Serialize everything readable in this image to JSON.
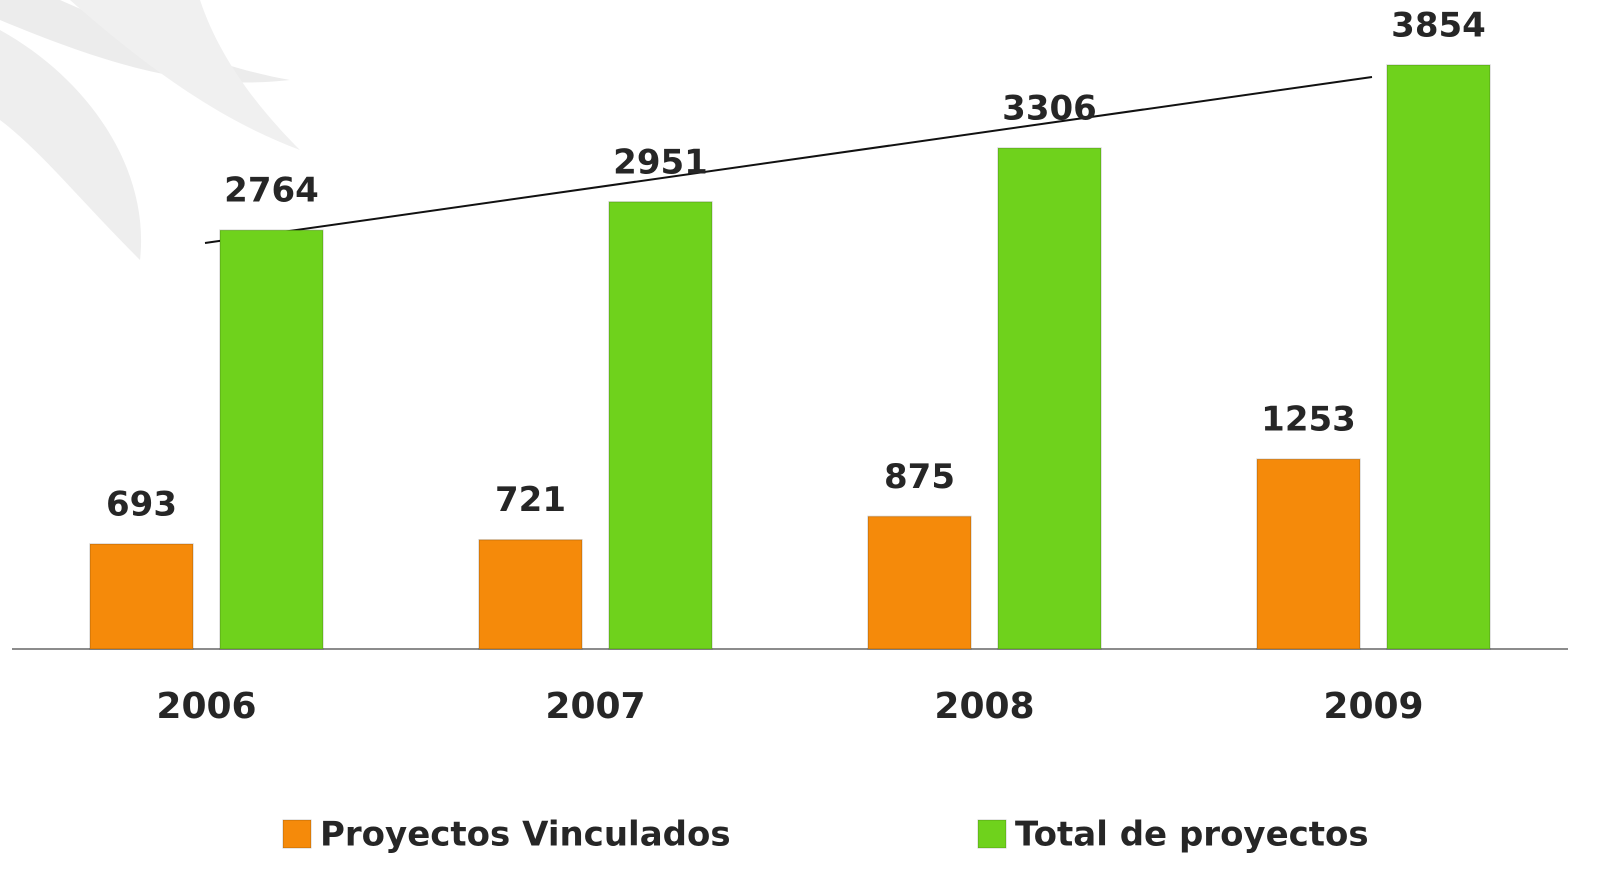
{
  "chart_data": {
    "type": "bar",
    "categories": [
      "2006",
      "2007",
      "2008",
      "2009"
    ],
    "series": [
      {
        "name": "Proyectos Vinculados",
        "color": "#f58a0a",
        "values": [
          693,
          721,
          875,
          1253
        ]
      },
      {
        "name": "Total de proyectos",
        "color": "#6fd21c",
        "values": [
          2764,
          2951,
          3306,
          3854
        ]
      }
    ]
  }
}
